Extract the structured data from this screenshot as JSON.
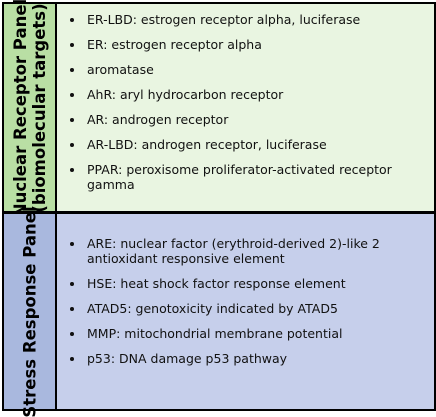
{
  "nuclear_receptor_panel": {
    "title_line1": "Nuclear Receptor Panel",
    "title_line2": "(biomolecular targets)",
    "items": [
      "ER-LBD: estrogen receptor alpha, luciferase",
      "ER: estrogen receptor alpha",
      "aromatase",
      "AhR: aryl hydrocarbon receptor",
      "AR: androgen receptor",
      "AR-LBD: androgen receptor, luciferase",
      "PPAR: peroxisome proliferator-activated receptor gamma"
    ],
    "colors": {
      "label_bg": "#b9dfa4",
      "content_bg": "#e9f5e1"
    }
  },
  "stress_response_panel": {
    "title": "Stress Response Panel",
    "items": [
      "ARE: nuclear factor (erythroid-derived 2)-like 2 antioxidant responsive element",
      "HSE: heat shock factor response element",
      "ATAD5: genotoxicity indicated by ATAD5",
      "MMP: mitochondrial membrane potential",
      "p53: DNA damage p53 pathway"
    ],
    "colors": {
      "label_bg": "#a9b8de",
      "content_bg": "#c6cfeb"
    }
  }
}
